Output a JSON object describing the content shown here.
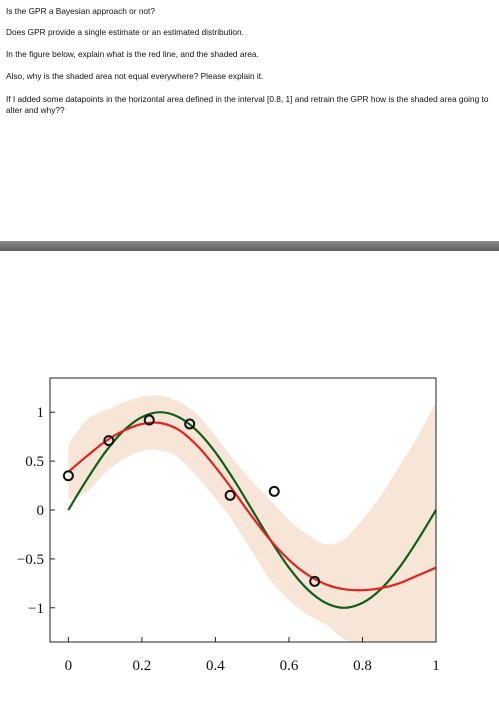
{
  "questions": [
    "Is the GPR a Bayesian approach or not?",
    "Does GPR provide a single estimate or an estimated distribution.",
    "In the figure below, explain what is the red line, and the shaded area.",
    "Also, why is the shaded area not equal everywhere? Please explain it.",
    "If I added some datapoints in the horizontal area defined in the interval [0.8, 1] and retrain the GPR how is the shaded area going to alter and why??"
  ],
  "colors": {
    "red_line": "#e0231c",
    "green_line": "#0f5f18",
    "shaded_area": "#f7e6d8",
    "points": "#111111"
  },
  "chart_data": {
    "type": "line",
    "xlim": [
      -0.05,
      1.0
    ],
    "ylim": [
      -1.35,
      1.35
    ],
    "xticks": [
      0,
      0.2,
      0.4,
      0.6,
      0.8,
      1
    ],
    "xtick_labels": [
      "0",
      "0.2",
      "0.4",
      "0.6",
      "0.8",
      "1"
    ],
    "yticks": [
      1,
      0.5,
      0,
      -0.5,
      -1
    ],
    "ytick_labels": [
      "1",
      "0.5",
      "0",
      "−0.5",
      "−1"
    ],
    "grid": false,
    "legend": "none",
    "points": {
      "x": [
        0,
        0.11,
        0.22,
        0.33,
        0.44,
        0.56,
        0.67
      ],
      "y": [
        0.35,
        0.71,
        0.92,
        0.88,
        0.15,
        0.19,
        -0.73
      ]
    },
    "series": [
      {
        "color": "#0f5f18",
        "x": [
          0,
          0.05,
          0.1,
          0.15,
          0.2,
          0.25,
          0.3,
          0.35,
          0.4,
          0.45,
          0.5,
          0.55,
          0.6,
          0.65,
          0.7,
          0.75,
          0.8,
          0.85,
          0.9,
          0.95,
          1.0
        ],
        "y": [
          0.0,
          0.31,
          0.59,
          0.81,
          0.95,
          1.0,
          0.95,
          0.81,
          0.59,
          0.31,
          0.0,
          -0.31,
          -0.59,
          -0.81,
          -0.95,
          -1.0,
          -0.95,
          -0.81,
          -0.59,
          -0.31,
          0.0
        ]
      },
      {
        "color": "#e0231c",
        "x": [
          0,
          0.05,
          0.1,
          0.15,
          0.2,
          0.25,
          0.3,
          0.35,
          0.4,
          0.45,
          0.5,
          0.55,
          0.6,
          0.65,
          0.7,
          0.75,
          0.8,
          0.85,
          0.9,
          0.95,
          1.0
        ],
        "y": [
          0.39,
          0.55,
          0.7,
          0.81,
          0.88,
          0.89,
          0.82,
          0.66,
          0.44,
          0.19,
          -0.07,
          -0.31,
          -0.51,
          -0.66,
          -0.76,
          -0.81,
          -0.82,
          -0.8,
          -0.75,
          -0.67,
          -0.59
        ]
      }
    ],
    "band": {
      "x": [
        0,
        0.05,
        0.1,
        0.15,
        0.2,
        0.25,
        0.3,
        0.35,
        0.4,
        0.45,
        0.5,
        0.55,
        0.6,
        0.65,
        0.7,
        0.75,
        0.8,
        0.85,
        0.9,
        0.95,
        1.0
      ],
      "upper": [
        0.67,
        0.92,
        1.02,
        1.1,
        1.16,
        1.17,
        1.11,
        0.98,
        0.76,
        0.51,
        0.29,
        0.1,
        -0.1,
        -0.25,
        -0.35,
        -0.3,
        -0.1,
        0.15,
        0.45,
        0.75,
        1.1
      ],
      "lower": [
        0.11,
        0.18,
        0.38,
        0.52,
        0.6,
        0.61,
        0.53,
        0.34,
        0.12,
        -0.13,
        -0.43,
        -0.72,
        -0.92,
        -1.07,
        -1.17,
        -1.32,
        -1.35,
        -1.35,
        -1.35,
        -1.35,
        -1.35
      ]
    }
  }
}
